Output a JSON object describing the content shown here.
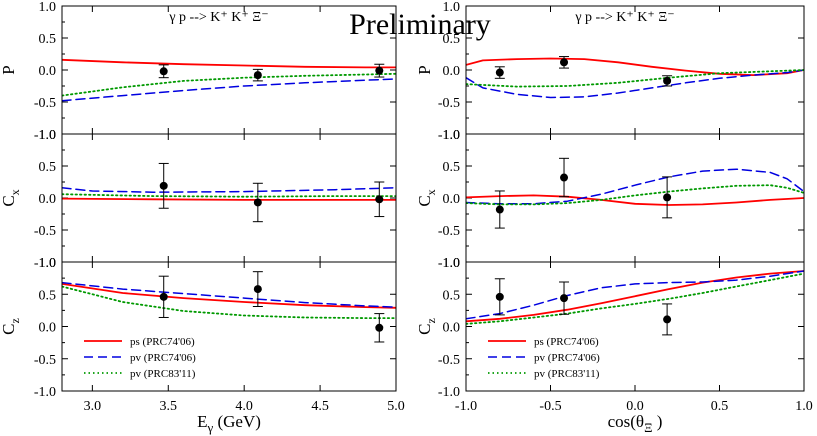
{
  "watermark": "Preliminary",
  "chart_data": [
    {
      "type": "line",
      "column": "left",
      "row": "top",
      "title": "γ p --> K⁺ K⁺ Ξ⁻",
      "ylabel": "P",
      "ylabel_sub": "",
      "xlabel": "",
      "xlabel_sub": "",
      "xlabel_tail": "",
      "xlim": [
        2.8,
        5.0
      ],
      "ylim": [
        -1.0,
        1.0
      ],
      "yticks": [
        -1.0,
        -0.5,
        0.0,
        0.5,
        1.0
      ],
      "yticklabels": [
        "-1.0",
        "-0.5",
        "0.0",
        "0.5",
        "1.0"
      ],
      "xticks": [],
      "xticklabels": [],
      "points": [
        {
          "x": 3.47,
          "y": -0.02,
          "err": 0.1
        },
        {
          "x": 4.09,
          "y": -0.08,
          "err": 0.09
        },
        {
          "x": 4.89,
          "y": -0.01,
          "err": 0.1
        }
      ],
      "series": [
        {
          "style": "ps",
          "x": [
            2.8,
            3.2,
            3.6,
            4.0,
            4.4,
            4.8,
            5.0
          ],
          "y": [
            0.16,
            0.12,
            0.09,
            0.07,
            0.05,
            0.04,
            0.04
          ]
        },
        {
          "style": "pv06",
          "x": [
            2.8,
            3.2,
            3.6,
            4.0,
            4.4,
            4.8,
            5.0
          ],
          "y": [
            -0.48,
            -0.4,
            -0.32,
            -0.25,
            -0.2,
            -0.16,
            -0.14
          ]
        },
        {
          "style": "pv11",
          "x": [
            2.8,
            3.2,
            3.6,
            4.0,
            4.4,
            4.8,
            5.0
          ],
          "y": [
            -0.4,
            -0.27,
            -0.17,
            -0.12,
            -0.09,
            -0.07,
            -0.06
          ]
        }
      ],
      "legend": []
    },
    {
      "type": "line",
      "column": "left",
      "row": "middle",
      "title": "",
      "ylabel": "C",
      "ylabel_sub": "x",
      "xlabel": "",
      "xlabel_sub": "",
      "xlabel_tail": "",
      "xlim": [
        2.8,
        5.0
      ],
      "ylim": [
        -1.0,
        1.0
      ],
      "yticks": [
        -1.0,
        -0.5,
        0.0,
        0.5,
        1.0
      ],
      "yticklabels": [
        "-1.0",
        "-0.5",
        "0.0",
        "0.5",
        "1.0"
      ],
      "xticks": [],
      "xticklabels": [],
      "points": [
        {
          "x": 3.47,
          "y": 0.19,
          "err": 0.35
        },
        {
          "x": 4.09,
          "y": -0.07,
          "err": 0.3
        },
        {
          "x": 4.89,
          "y": -0.02,
          "err": 0.27
        }
      ],
      "series": [
        {
          "style": "ps",
          "x": [
            2.8,
            3.4,
            4.0,
            4.6,
            5.0
          ],
          "y": [
            -0.01,
            -0.02,
            -0.03,
            -0.03,
            -0.03
          ]
        },
        {
          "style": "pv06",
          "x": [
            2.8,
            3.0,
            3.4,
            4.0,
            4.6,
            5.0
          ],
          "y": [
            0.16,
            0.11,
            0.09,
            0.1,
            0.13,
            0.16
          ]
        },
        {
          "style": "pv11",
          "x": [
            2.8,
            3.4,
            4.0,
            4.6,
            5.0
          ],
          "y": [
            0.06,
            0.03,
            0.02,
            0.03,
            0.03
          ]
        }
      ],
      "legend": []
    },
    {
      "type": "line",
      "column": "left",
      "row": "bottom",
      "title": "",
      "ylabel": "C",
      "ylabel_sub": "z",
      "xlabel": "E",
      "xlabel_sub": "γ",
      "xlabel_tail": " (GeV)",
      "xlim": [
        2.8,
        5.0
      ],
      "ylim": [
        -1.0,
        1.0
      ],
      "yticks": [
        -1.0,
        -0.5,
        0.0,
        0.5,
        1.0
      ],
      "yticklabels": [
        "-1.0",
        "-0.5",
        "0.0",
        "0.5",
        "1.0"
      ],
      "xticks": [
        3.0,
        3.5,
        4.0,
        4.5,
        5.0
      ],
      "xticklabels": [
        "3.0",
        "3.5",
        "4.0",
        "4.5",
        "5.0"
      ],
      "points": [
        {
          "x": 3.47,
          "y": 0.46,
          "err": 0.32
        },
        {
          "x": 4.09,
          "y": 0.58,
          "err": 0.27
        },
        {
          "x": 4.89,
          "y": -0.02,
          "err": 0.22
        }
      ],
      "series": [
        {
          "style": "ps",
          "x": [
            2.8,
            3.2,
            3.6,
            4.0,
            4.4,
            4.8,
            5.0
          ],
          "y": [
            0.66,
            0.52,
            0.44,
            0.38,
            0.33,
            0.3,
            0.29
          ]
        },
        {
          "style": "pv06",
          "x": [
            2.8,
            3.2,
            3.6,
            4.0,
            4.4,
            4.8,
            5.0
          ],
          "y": [
            0.68,
            0.58,
            0.51,
            0.44,
            0.37,
            0.32,
            0.3
          ]
        },
        {
          "style": "pv11",
          "x": [
            2.8,
            3.2,
            3.6,
            4.0,
            4.4,
            4.8,
            5.0
          ],
          "y": [
            0.62,
            0.38,
            0.24,
            0.17,
            0.14,
            0.13,
            0.13
          ]
        }
      ],
      "legend": [
        {
          "style": "ps",
          "label": "ps  (PRC74'06)"
        },
        {
          "style": "pv06",
          "label": "pv (PRC74'06)"
        },
        {
          "style": "pv11",
          "label": "pv (PRC83'11)"
        }
      ]
    },
    {
      "type": "line",
      "column": "right",
      "row": "top",
      "title": "γ p --> K⁺ K⁺ Ξ⁻",
      "ylabel": "P",
      "ylabel_sub": "",
      "xlabel": "",
      "xlabel_sub": "",
      "xlabel_tail": "",
      "xlim": [
        -1.0,
        1.0
      ],
      "ylim": [
        -1.0,
        1.0
      ],
      "yticks": [
        -1.0,
        -0.5,
        0.0,
        0.5,
        1.0
      ],
      "yticklabels": [
        "-1.0",
        "-0.5",
        "0.0",
        "0.5",
        "1.0"
      ],
      "xticks": [],
      "xticklabels": [],
      "points": [
        {
          "x": -0.8,
          "y": -0.04,
          "err": 0.09
        },
        {
          "x": -0.42,
          "y": 0.12,
          "err": 0.09
        },
        {
          "x": 0.19,
          "y": -0.17,
          "err": 0.08
        }
      ],
      "series": [
        {
          "style": "ps",
          "x": [
            -1.0,
            -0.9,
            -0.7,
            -0.5,
            -0.3,
            -0.1,
            0.1,
            0.3,
            0.5,
            0.7,
            0.9,
            1.0
          ],
          "y": [
            0.08,
            0.15,
            0.17,
            0.18,
            0.17,
            0.12,
            0.05,
            -0.01,
            -0.06,
            -0.08,
            -0.05,
            0.0
          ]
        },
        {
          "style": "pv06",
          "x": [
            -1.0,
            -0.9,
            -0.7,
            -0.5,
            -0.3,
            -0.1,
            0.1,
            0.3,
            0.5,
            0.7,
            0.9,
            1.0
          ],
          "y": [
            -0.12,
            -0.28,
            -0.38,
            -0.43,
            -0.42,
            -0.36,
            -0.28,
            -0.2,
            -0.13,
            -0.08,
            -0.04,
            0.0
          ]
        },
        {
          "style": "pv11",
          "x": [
            -1.0,
            -0.7,
            -0.4,
            -0.1,
            0.2,
            0.5,
            0.8,
            1.0
          ],
          "y": [
            -0.22,
            -0.26,
            -0.25,
            -0.2,
            -0.12,
            -0.05,
            -0.02,
            0.0
          ]
        }
      ],
      "legend": []
    },
    {
      "type": "line",
      "column": "right",
      "row": "middle",
      "title": "",
      "ylabel": "C",
      "ylabel_sub": "x",
      "xlabel": "",
      "xlabel_sub": "",
      "xlabel_tail": "",
      "xlim": [
        -1.0,
        1.0
      ],
      "ylim": [
        -1.0,
        1.0
      ],
      "yticks": [
        -1.0,
        -0.5,
        0.0,
        0.5,
        1.0
      ],
      "yticklabels": [
        "-1.0",
        "-0.5",
        "0.0",
        "0.5",
        "1.0"
      ],
      "xticks": [],
      "xticklabels": [],
      "points": [
        {
          "x": -0.8,
          "y": -0.18,
          "err": 0.29
        },
        {
          "x": -0.42,
          "y": 0.32,
          "err": 0.3
        },
        {
          "x": 0.19,
          "y": 0.01,
          "err": 0.32
        }
      ],
      "series": [
        {
          "style": "ps",
          "x": [
            -1.0,
            -0.8,
            -0.6,
            -0.4,
            -0.2,
            0.0,
            0.2,
            0.4,
            0.6,
            0.8,
            1.0
          ],
          "y": [
            0.01,
            0.03,
            0.04,
            0.02,
            -0.03,
            -0.09,
            -0.11,
            -0.1,
            -0.07,
            -0.03,
            0.0
          ]
        },
        {
          "style": "pv06",
          "x": [
            -1.0,
            -0.8,
            -0.6,
            -0.4,
            -0.2,
            0.0,
            0.2,
            0.4,
            0.6,
            0.8,
            0.9,
            1.0
          ],
          "y": [
            -0.07,
            -0.09,
            -0.09,
            -0.05,
            0.06,
            0.2,
            0.33,
            0.42,
            0.45,
            0.4,
            0.3,
            0.1
          ]
        },
        {
          "style": "pv11",
          "x": [
            -1.0,
            -0.8,
            -0.6,
            -0.4,
            -0.2,
            0.0,
            0.2,
            0.4,
            0.6,
            0.8,
            0.9,
            1.0
          ],
          "y": [
            -0.08,
            -0.1,
            -0.1,
            -0.08,
            -0.03,
            0.04,
            0.1,
            0.15,
            0.19,
            0.2,
            0.16,
            0.08
          ]
        }
      ],
      "legend": []
    },
    {
      "type": "line",
      "column": "right",
      "row": "bottom",
      "title": "",
      "ylabel": "C",
      "ylabel_sub": "z",
      "xlabel": "cos(θ",
      "xlabel_sub": "Ξ",
      "xlabel_tail": " )",
      "xlim": [
        -1.0,
        1.0
      ],
      "ylim": [
        -1.0,
        1.0
      ],
      "yticks": [
        -1.0,
        -0.5,
        0.0,
        0.5,
        1.0
      ],
      "yticklabels": [
        "-1.0",
        "-0.5",
        "0.0",
        "0.5",
        "1.0"
      ],
      "xticks": [
        -1.0,
        -0.5,
        0.0,
        0.5,
        1.0
      ],
      "xticklabels": [
        "-1.0",
        "-0.5",
        "0.0",
        "0.5",
        "1.0"
      ],
      "points": [
        {
          "x": -0.8,
          "y": 0.46,
          "err": 0.28
        },
        {
          "x": -0.42,
          "y": 0.44,
          "err": 0.25
        },
        {
          "x": 0.19,
          "y": 0.11,
          "err": 0.24
        }
      ],
      "series": [
        {
          "style": "ps",
          "x": [
            -1.0,
            -0.8,
            -0.6,
            -0.4,
            -0.2,
            0.0,
            0.2,
            0.4,
            0.6,
            0.8,
            1.0
          ],
          "y": [
            0.08,
            0.12,
            0.18,
            0.26,
            0.36,
            0.47,
            0.58,
            0.68,
            0.76,
            0.82,
            0.86
          ]
        },
        {
          "style": "pv06",
          "x": [
            -1.0,
            -0.8,
            -0.6,
            -0.4,
            -0.2,
            0.0,
            0.2,
            0.4,
            0.6,
            0.8,
            1.0
          ],
          "y": [
            0.12,
            0.2,
            0.33,
            0.48,
            0.6,
            0.66,
            0.68,
            0.69,
            0.72,
            0.78,
            0.86
          ]
        },
        {
          "style": "pv11",
          "x": [
            -1.0,
            -0.8,
            -0.6,
            -0.4,
            -0.2,
            0.0,
            0.2,
            0.4,
            0.6,
            0.8,
            1.0
          ],
          "y": [
            0.04,
            0.08,
            0.14,
            0.2,
            0.28,
            0.35,
            0.43,
            0.52,
            0.62,
            0.72,
            0.82
          ]
        }
      ],
      "legend": [
        {
          "style": "ps",
          "label": "ps  (PRC74'06)"
        },
        {
          "style": "pv06",
          "label": "pv (PRC74'06)"
        },
        {
          "style": "pv11",
          "label": "pv (PRC83'11)"
        }
      ]
    }
  ],
  "styles": {
    "ps": {
      "color": "#ff0000",
      "dash": "",
      "width": 1.8
    },
    "pv06": {
      "color": "#0000e0",
      "dash": "9 5",
      "width": 1.5
    },
    "pv11": {
      "color": "#009900",
      "dash": "1.5 3",
      "width": 1.8
    }
  }
}
